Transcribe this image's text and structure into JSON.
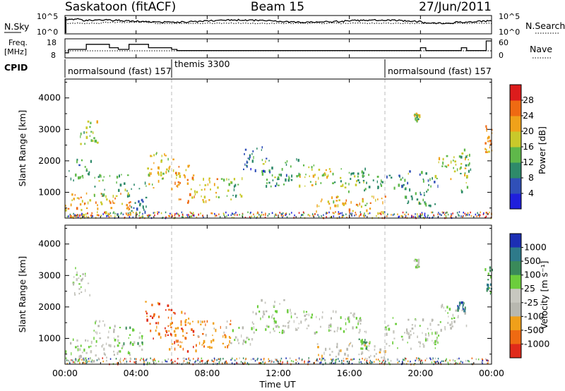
{
  "chart_data": {
    "type": "heatmap",
    "header": {
      "station": "Saskatoon (fitACF)",
      "beam": "Beam 15",
      "date": "27/Jun/2011"
    },
    "noise_panel": {
      "left_label": "N.Sky",
      "right_label": "N.Search",
      "left_ticks": [
        "10^5",
        "10^0"
      ],
      "right_ticks": [
        "10^5",
        "10^0"
      ]
    },
    "freq_panel": {
      "left_label_line1": "Freq.",
      "left_label_line2": "[MHz]",
      "right_label": "Nave",
      "left_ticks": [
        18,
        8
      ],
      "right_ticks": [
        60,
        0
      ],
      "freq_steps": [
        {
          "t": 0.0,
          "v": 11
        },
        {
          "t": 0.2,
          "v": 13
        },
        {
          "t": 1.2,
          "v": 16
        },
        {
          "t": 2.5,
          "v": 14
        },
        {
          "t": 3.0,
          "v": 13
        },
        {
          "t": 3.6,
          "v": 16
        },
        {
          "t": 4.7,
          "v": 14
        },
        {
          "t": 6.0,
          "v": 13
        },
        {
          "t": 6.3,
          "v": 12.3
        },
        {
          "t": 19.7,
          "v": 12.3
        },
        {
          "t": 20.0,
          "v": 14
        },
        {
          "t": 20.3,
          "v": 12.3
        },
        {
          "t": 22.3,
          "v": 14
        },
        {
          "t": 22.6,
          "v": 12.3
        },
        {
          "t": 23.7,
          "v": 18
        },
        {
          "t": 24.0,
          "v": 18
        }
      ],
      "nave_level": 25
    },
    "cpid": {
      "label": "CPID",
      "segments": [
        {
          "start": 0.0,
          "end": 6.0,
          "name": "normalsound (fast)",
          "id": 157
        },
        {
          "start": 6.0,
          "end": 18.0,
          "name": "themis",
          "id": 3300
        },
        {
          "start": 18.0,
          "end": 24.0,
          "name": "normalsound (fast)",
          "id": 157
        }
      ]
    },
    "power_panel": {
      "ylabel": "Slant Range [km]",
      "yticks": [
        1000,
        2000,
        3000,
        4000
      ],
      "ylim": [
        180,
        4600
      ],
      "colorbar_label": "Power [dB]",
      "colorbar_ticks": [
        4,
        8,
        12,
        16,
        20,
        24,
        28
      ],
      "colorbar_range": [
        0,
        32
      ],
      "colors": [
        "#1f1fdc",
        "#3050b8",
        "#2e8a6a",
        "#5fb84a",
        "#c9c92a",
        "#f0a21a",
        "#ef6a12",
        "#dc1c1c"
      ],
      "regions": [
        {
          "t0": 0.0,
          "t1": 3.7,
          "r0": 280,
          "r1": 1000,
          "level": 21
        },
        {
          "t0": 0.2,
          "t1": 1.5,
          "r0": 1400,
          "r1": 2100,
          "level": 9
        },
        {
          "t0": 0.6,
          "t1": 1.8,
          "r0": 2500,
          "r1": 3300,
          "level": 14
        },
        {
          "t0": 1.6,
          "t1": 3.6,
          "r0": 900,
          "r1": 1600,
          "level": 11
        },
        {
          "t0": 3.7,
          "t1": 4.6,
          "r0": 300,
          "r1": 1400,
          "level": 8
        },
        {
          "t0": 4.6,
          "t1": 6.1,
          "r0": 1100,
          "r1": 2300,
          "level": 17
        },
        {
          "t0": 6.1,
          "t1": 7.2,
          "r0": 600,
          "r1": 1900,
          "level": 21
        },
        {
          "t0": 7.2,
          "t1": 8.6,
          "r0": 700,
          "r1": 1600,
          "level": 19
        },
        {
          "t0": 8.6,
          "t1": 10.0,
          "r0": 800,
          "r1": 1500,
          "level": 12
        },
        {
          "t0": 10.0,
          "t1": 11.3,
          "r0": 1700,
          "r1": 2500,
          "level": 6
        },
        {
          "t0": 11.0,
          "t1": 13.2,
          "r0": 1200,
          "r1": 2100,
          "level": 10
        },
        {
          "t0": 13.0,
          "t1": 15.0,
          "r0": 1200,
          "r1": 1900,
          "level": 16
        },
        {
          "t0": 15.0,
          "t1": 17.2,
          "r0": 1050,
          "r1": 1800,
          "level": 11
        },
        {
          "t0": 14.0,
          "t1": 18.0,
          "r0": 400,
          "r1": 900,
          "level": 18
        },
        {
          "t0": 17.2,
          "t1": 19.0,
          "r0": 1100,
          "r1": 1600,
          "level": 8
        },
        {
          "t0": 19.0,
          "t1": 21.0,
          "r0": 600,
          "r1": 1700,
          "level": 10
        },
        {
          "t0": 21.0,
          "t1": 22.6,
          "r0": 1400,
          "r1": 2200,
          "level": 15
        },
        {
          "t0": 22.2,
          "t1": 22.8,
          "r0": 1000,
          "r1": 2400,
          "level": 12
        },
        {
          "t0": 19.6,
          "t1": 19.9,
          "r0": 3300,
          "r1": 3550,
          "level": 14
        },
        {
          "t0": 23.6,
          "t1": 24.0,
          "r0": 2300,
          "r1": 3200,
          "level": 20
        }
      ]
    },
    "velocity_panel": {
      "ylabel": "Slant Range [km]",
      "yticks": [
        1000,
        2000,
        3000,
        4000
      ],
      "ylim": [
        180,
        4600
      ],
      "colorbar_label": "Velocity [m s⁻¹]",
      "colorbar_ticks": [
        1000,
        500,
        100,
        25,
        -25,
        -100,
        -500,
        -1000
      ],
      "colors": [
        "#1c2fb4",
        "#2e7a8a",
        "#3a8a5a",
        "#6ccd3c",
        "#c8c8c0",
        "#b8b8b0",
        "#f0a01a",
        "#ef6a12",
        "#e02a1a"
      ],
      "regions": [
        {
          "t0": 0.0,
          "t1": 3.7,
          "r0": 280,
          "r1": 1000,
          "level": 4
        },
        {
          "t0": 0.3,
          "t1": 1.5,
          "r0": 2400,
          "r1": 3300,
          "level": 4
        },
        {
          "t0": 1.6,
          "t1": 3.0,
          "r0": 900,
          "r1": 1600,
          "level": 4
        },
        {
          "t0": 3.0,
          "t1": 4.4,
          "r0": 600,
          "r1": 1400,
          "level": 3
        },
        {
          "t0": 4.5,
          "t1": 6.0,
          "r0": 1000,
          "r1": 2200,
          "level": 7
        },
        {
          "t0": 5.8,
          "t1": 7.3,
          "r0": 600,
          "r1": 1900,
          "level": 7
        },
        {
          "t0": 7.3,
          "t1": 9.3,
          "r0": 600,
          "r1": 1600,
          "level": 6
        },
        {
          "t0": 9.3,
          "t1": 10.5,
          "r0": 800,
          "r1": 1400,
          "level": 4
        },
        {
          "t0": 10.5,
          "t1": 12.8,
          "r0": 1200,
          "r1": 2300,
          "level": 4
        },
        {
          "t0": 12.8,
          "t1": 17.0,
          "r0": 1200,
          "r1": 1900,
          "level": 4
        },
        {
          "t0": 14.0,
          "t1": 18.0,
          "r0": 400,
          "r1": 900,
          "level": 5
        },
        {
          "t0": 16.5,
          "t1": 17.2,
          "r0": 700,
          "r1": 1000,
          "level": 3
        },
        {
          "t0": 18.0,
          "t1": 21.0,
          "r0": 700,
          "r1": 1700,
          "level": 4
        },
        {
          "t0": 21.0,
          "t1": 22.6,
          "r0": 1300,
          "r1": 2100,
          "level": 4
        },
        {
          "t0": 22.0,
          "t1": 22.5,
          "r0": 1900,
          "r1": 2200,
          "level": 1
        },
        {
          "t0": 19.6,
          "t1": 19.9,
          "r0": 3300,
          "r1": 3550,
          "level": 4
        },
        {
          "t0": 23.6,
          "t1": 24.0,
          "r0": 2300,
          "r1": 3300,
          "level": 2
        }
      ]
    },
    "xaxis": {
      "label": "Time UT",
      "ticks": [
        "00:00",
        "04:00",
        "08:00",
        "12:00",
        "16:00",
        "20:00",
        "00:00"
      ],
      "range_hours": [
        0,
        24
      ]
    }
  }
}
